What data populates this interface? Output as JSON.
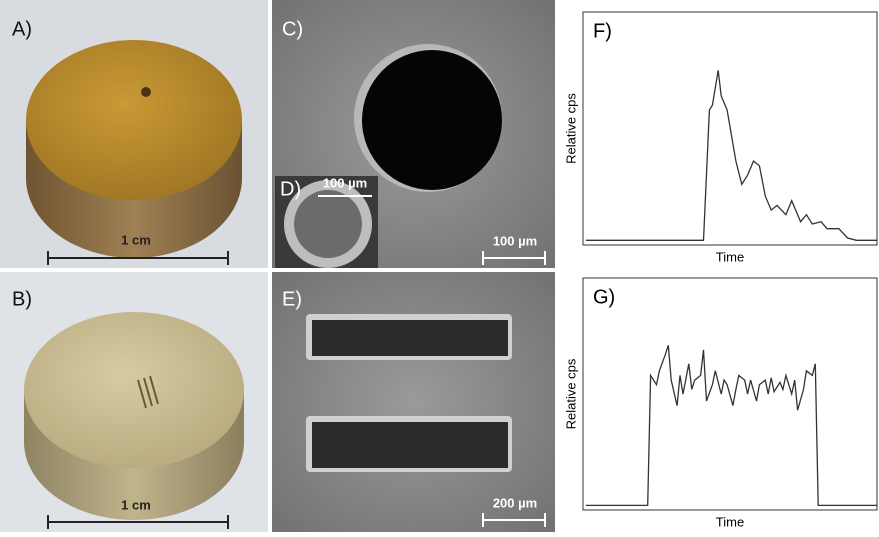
{
  "images": [
    {
      "label": "A)",
      "scale_bar": "1 cm"
    },
    {
      "label": "B)",
      "scale_bar": "1 cm"
    },
    {
      "label": "C)",
      "scale_bar": "100 µm"
    },
    {
      "label": "D)",
      "scale_bar": "100 µm"
    },
    {
      "label": "E)",
      "scale_bar": "200 µm"
    }
  ],
  "chart_data": [
    {
      "type": "line",
      "title": "F)",
      "x_label": "Time",
      "y_label": "Relative cps",
      "color": "#333333",
      "xlim": [
        0,
        100
      ],
      "ylim": [
        0,
        100
      ],
      "x": [
        1,
        41,
        43,
        44,
        46,
        47,
        49,
        52,
        54,
        56,
        58,
        60,
        62,
        64,
        66,
        69,
        71,
        74,
        76,
        78,
        81,
        83,
        87,
        90,
        93,
        100
      ],
      "values": [
        2,
        2,
        58,
        60,
        75,
        64,
        58,
        36,
        26,
        30,
        36,
        34,
        21,
        15,
        17,
        13,
        19,
        10,
        13,
        9,
        10,
        7,
        7,
        3,
        2,
        2
      ]
    },
    {
      "type": "line",
      "title": "G)",
      "x_label": "Time",
      "y_label": "Relative cps",
      "color": "#333333",
      "xlim": [
        0,
        100
      ],
      "ylim": [
        0,
        100
      ],
      "x": [
        1,
        22,
        23,
        25,
        26,
        28,
        29,
        30,
        32,
        33,
        34,
        36,
        37,
        38,
        40,
        41,
        42,
        44,
        45,
        47,
        48,
        49,
        51,
        52,
        53,
        55,
        56,
        57,
        59,
        60,
        62,
        63,
        64,
        65,
        67,
        68,
        69,
        71,
        72,
        73,
        75,
        76,
        78,
        79,
        80,
        100
      ],
      "values": [
        2,
        2,
        58,
        54,
        60,
        67,
        71,
        56,
        45,
        58,
        50,
        63,
        52,
        56,
        58,
        69,
        47,
        54,
        60,
        50,
        56,
        54,
        45,
        52,
        58,
        56,
        50,
        56,
        47,
        54,
        56,
        50,
        57,
        51,
        55,
        52,
        58,
        50,
        56,
        43,
        52,
        60,
        58,
        63,
        2,
        2
      ]
    }
  ]
}
